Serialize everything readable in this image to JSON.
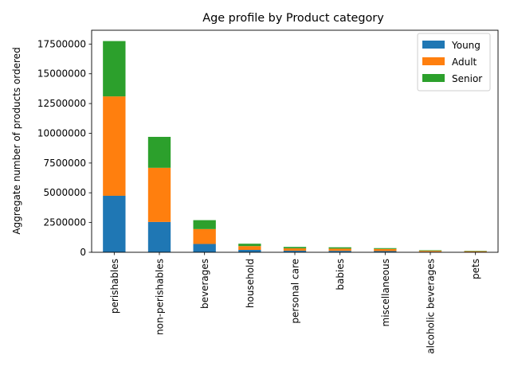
{
  "chart_data": {
    "type": "bar",
    "stacked": true,
    "title": "Age profile by Product category",
    "xlabel": "",
    "ylabel": "Aggregate number of products ordered",
    "categories": [
      "perishables",
      "non-perishables",
      "beverages",
      "household",
      "personal care",
      "babies",
      "miscellaneous",
      "alcoholic beverages",
      "pets"
    ],
    "series": [
      {
        "name": "Young",
        "color": "#1f77b4",
        "values": [
          4750000,
          2550000,
          700000,
          200000,
          130000,
          120000,
          100000,
          45000,
          35000
        ]
      },
      {
        "name": "Adult",
        "color": "#ff7f0e",
        "values": [
          8350000,
          4550000,
          1250000,
          320000,
          200000,
          190000,
          180000,
          80000,
          55000
        ]
      },
      {
        "name": "Senior",
        "color": "#2ca02c",
        "values": [
          4650000,
          2600000,
          750000,
          200000,
          120000,
          110000,
          70000,
          45000,
          30000
        ]
      }
    ],
    "yticks": [
      0,
      2500000,
      5000000,
      7500000,
      10000000,
      12500000,
      15000000,
      17500000
    ],
    "ylim": [
      0,
      18660000
    ],
    "grid": false,
    "legend": "top-right"
  }
}
